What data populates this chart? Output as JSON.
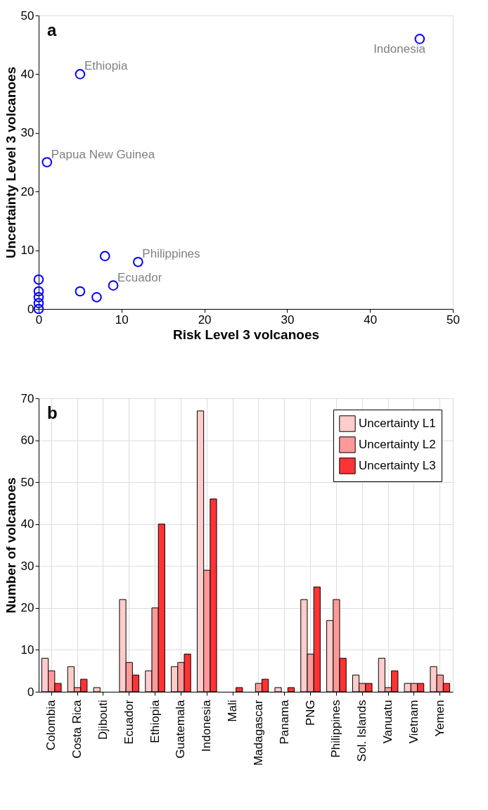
{
  "chart_data": [
    {
      "type": "scatter",
      "title": "a",
      "xlabel": "Risk Level 3 volcanoes",
      "ylabel": "Uncertainty Level 3 volcanoes",
      "series": [
        {
          "color": "#0000ff",
          "x": [
            46,
            5,
            1,
            12,
            9,
            8,
            7,
            5,
            0,
            0,
            0,
            0,
            0
          ],
          "values": [
            46,
            40,
            25,
            8,
            4,
            9,
            2,
            3,
            5,
            3,
            2,
            1,
            0
          ]
        }
      ],
      "marker": "circle",
      "xlim": [
        0,
        50
      ],
      "ylim": [
        0,
        50
      ],
      "xticks": [
        0,
        10,
        20,
        30,
        40,
        50
      ],
      "yticks": [
        0,
        10,
        20,
        30,
        40,
        50
      ],
      "grid": false,
      "legend": false,
      "annotations": [
        {
          "text": "Indonesia",
          "x": 46,
          "y": 46
        },
        {
          "text": "Ethiopia",
          "x": 5,
          "y": 40
        },
        {
          "text": "Papua New Guinea",
          "x": 1,
          "y": 25
        },
        {
          "text": "Philippines",
          "x": 12,
          "y": 8
        },
        {
          "text": "Ecuador",
          "x": 9,
          "y": 4
        }
      ]
    },
    {
      "type": "bar",
      "title": "b",
      "ylabel": "Number of volcanoes",
      "categories": [
        "Colombia",
        "Costa Rica",
        "Djibouti",
        "Ecuador",
        "Ethiopia",
        "Guatemala",
        "Indonesia",
        "Mali",
        "Madagascar",
        "Panama",
        "PNG",
        "Philippines",
        "Sol. Islands",
        "Vanuatu",
        "Vietnam",
        "Yemen"
      ],
      "series": [
        {
          "name": "Uncertainty L1",
          "color": "#ffcccc",
          "values": [
            8,
            6,
            1,
            22,
            5,
            6,
            67,
            0,
            0,
            1,
            22,
            17,
            4,
            8,
            2,
            6
          ]
        },
        {
          "name": "Uncertainty L2",
          "color": "#ff9999",
          "values": [
            5,
            1,
            0,
            7,
            20,
            7,
            29,
            0,
            2,
            0,
            9,
            22,
            2,
            1,
            2,
            4
          ]
        },
        {
          "name": "Uncertainty L3",
          "color": "#ff3333",
          "values": [
            2,
            3,
            0,
            4,
            40,
            9,
            46,
            1,
            3,
            1,
            25,
            8,
            2,
            5,
            2,
            2
          ]
        }
      ],
      "ylim": [
        0,
        70
      ],
      "yticks": [
        0,
        10,
        20,
        30,
        40,
        50,
        60,
        70
      ],
      "grid": true,
      "legend": "top right"
    }
  ]
}
